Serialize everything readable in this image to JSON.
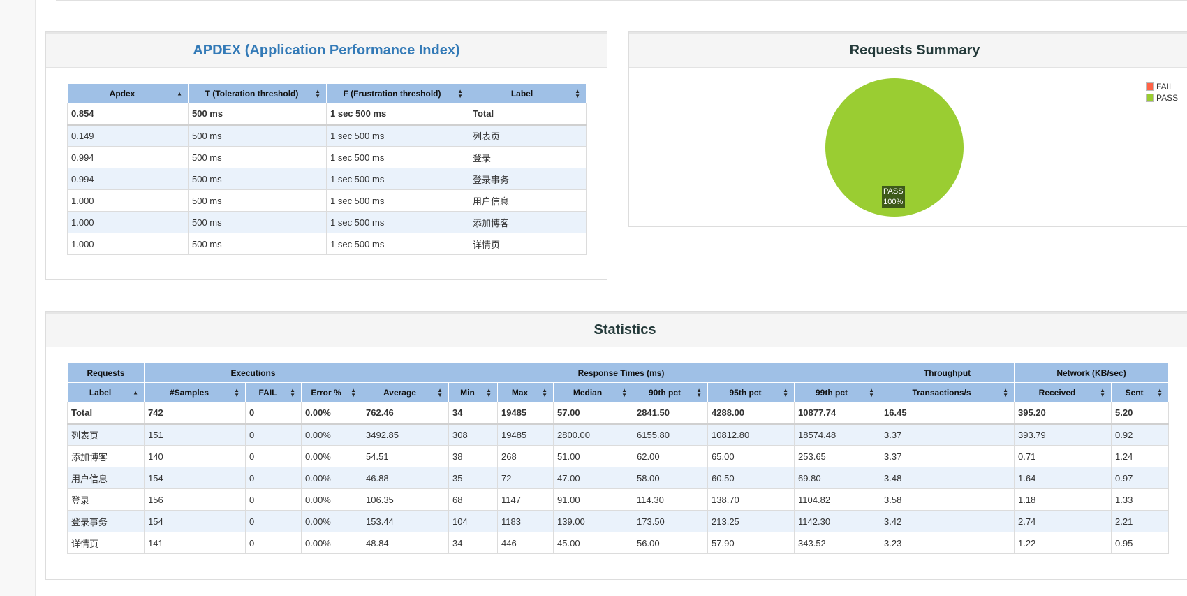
{
  "apdex": {
    "title": "APDEX (Application Performance Index)",
    "columns": [
      "Apdex",
      "T (Toleration threshold)",
      "F (Frustration threshold)",
      "Label"
    ],
    "rows": [
      [
        "0.854",
        "500 ms",
        "1 sec 500 ms",
        "Total"
      ],
      [
        "0.149",
        "500 ms",
        "1 sec 500 ms",
        "列表页"
      ],
      [
        "0.994",
        "500 ms",
        "1 sec 500 ms",
        "登录"
      ],
      [
        "0.994",
        "500 ms",
        "1 sec 500 ms",
        "登录事务"
      ],
      [
        "1.000",
        "500 ms",
        "1 sec 500 ms",
        "用户信息"
      ],
      [
        "1.000",
        "500 ms",
        "1 sec 500 ms",
        "添加博客"
      ],
      [
        "1.000",
        "500 ms",
        "1 sec 500 ms",
        "详情页"
      ]
    ]
  },
  "summary": {
    "title": "Requests Summary",
    "legend": [
      {
        "label": "FAIL",
        "color": "#ff6347"
      },
      {
        "label": "PASS",
        "color": "#9acd32"
      }
    ],
    "pass_color": "#9acd32",
    "pie_label_name": "PASS",
    "pie_label_pct": "100%"
  },
  "chart_data": {
    "type": "pie",
    "title": "Requests Summary",
    "categories": [
      "FAIL",
      "PASS"
    ],
    "values": [
      0,
      100
    ],
    "legend_position": "top-right"
  },
  "statistics": {
    "title": "Statistics",
    "groups": [
      "Requests",
      "Executions",
      "Response Times (ms)",
      "Throughput",
      "Network (KB/sec)"
    ],
    "columns": [
      "Label",
      "#Samples",
      "FAIL",
      "Error %",
      "Average",
      "Min",
      "Max",
      "Median",
      "90th pct",
      "95th pct",
      "99th pct",
      "Transactions/s",
      "Received",
      "Sent"
    ],
    "rows": [
      [
        "Total",
        "742",
        "0",
        "0.00%",
        "762.46",
        "34",
        "19485",
        "57.00",
        "2841.50",
        "4288.00",
        "10877.74",
        "16.45",
        "395.20",
        "5.20"
      ],
      [
        "列表页",
        "151",
        "0",
        "0.00%",
        "3492.85",
        "308",
        "19485",
        "2800.00",
        "6155.80",
        "10812.80",
        "18574.48",
        "3.37",
        "393.79",
        "0.92"
      ],
      [
        "添加博客",
        "140",
        "0",
        "0.00%",
        "54.51",
        "38",
        "268",
        "51.00",
        "62.00",
        "65.00",
        "253.65",
        "3.37",
        "0.71",
        "1.24"
      ],
      [
        "用户信息",
        "154",
        "0",
        "0.00%",
        "46.88",
        "35",
        "72",
        "47.00",
        "58.00",
        "60.50",
        "69.80",
        "3.48",
        "1.64",
        "0.97"
      ],
      [
        "登录",
        "156",
        "0",
        "0.00%",
        "106.35",
        "68",
        "1147",
        "91.00",
        "114.30",
        "138.70",
        "1104.82",
        "3.58",
        "1.18",
        "1.33"
      ],
      [
        "登录事务",
        "154",
        "0",
        "0.00%",
        "153.44",
        "104",
        "1183",
        "139.00",
        "173.50",
        "213.25",
        "1142.30",
        "3.42",
        "2.74",
        "2.21"
      ],
      [
        "详情页",
        "141",
        "0",
        "0.00%",
        "48.84",
        "34",
        "446",
        "45.00",
        "56.00",
        "57.90",
        "343.52",
        "3.23",
        "1.22",
        "0.95"
      ]
    ]
  }
}
